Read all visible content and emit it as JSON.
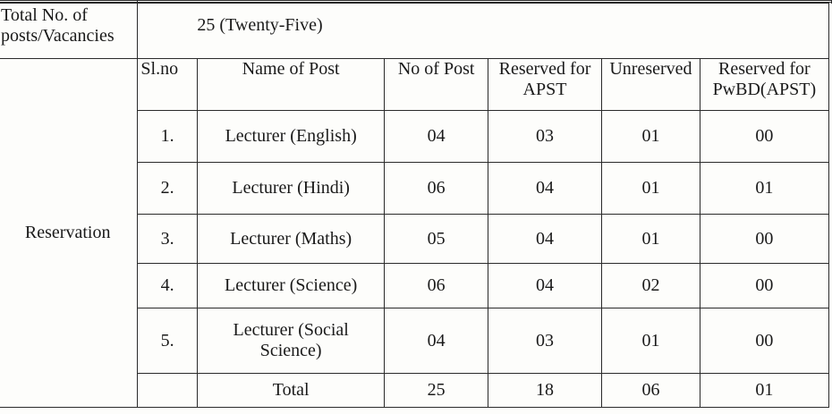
{
  "total_row": {
    "label_line1": "Total No. of",
    "label_line2": "posts/Vacancies",
    "value": "25 (Twenty-Five)"
  },
  "reservation_label": "Reservation",
  "headers": {
    "slno": "Sl.no",
    "name": "Name of Post",
    "no_of_post": "No of Post",
    "reserved_apst_line1": "Reserved for",
    "reserved_apst_line2": "APST",
    "unreserved": "Unreserved",
    "reserved_pwbd_line1": "Reserved for",
    "reserved_pwbd_line2": "PwBD(APST)"
  },
  "rows": [
    {
      "slno": "1.",
      "name_line1": "Lecturer (English)",
      "name_line2": "",
      "posts": "04",
      "apst": "03",
      "unreserved": "01",
      "pwbd": "00"
    },
    {
      "slno": "2.",
      "name_line1": "Lecturer (Hindi)",
      "name_line2": "",
      "posts": "06",
      "apst": "04",
      "unreserved": "01",
      "pwbd": "01"
    },
    {
      "slno": "3.",
      "name_line1": "Lecturer (Maths)",
      "name_line2": "",
      "posts": "05",
      "apst": "04",
      "unreserved": "01",
      "pwbd": "00"
    },
    {
      "slno": "4.",
      "name_line1": "Lecturer (Science)",
      "name_line2": "",
      "posts": "06",
      "apst": "04",
      "unreserved": "02",
      "pwbd": "00"
    },
    {
      "slno": "5.",
      "name_line1": "Lecturer (Social",
      "name_line2": "Science)",
      "posts": "04",
      "apst": "03",
      "unreserved": "01",
      "pwbd": "00"
    }
  ],
  "total": {
    "slno": "",
    "label": "Total",
    "posts": "25",
    "apst": "18",
    "unreserved": "06",
    "pwbd": "01"
  }
}
